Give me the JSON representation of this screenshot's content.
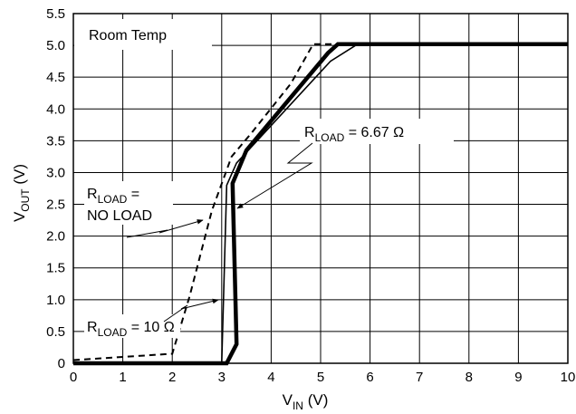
{
  "chart_data": {
    "type": "line",
    "xlim": [
      0,
      10
    ],
    "ylim": [
      0,
      5.5
    ],
    "x_ticks": [
      "0",
      "1",
      "2",
      "3",
      "4",
      "5",
      "6",
      "7",
      "8",
      "9",
      "10"
    ],
    "y_ticks": [
      "0",
      "0.5",
      "1.0",
      "1.5",
      "2.0",
      "2.5",
      "3.0",
      "3.5",
      "4.0",
      "4.5",
      "5.0",
      "5.5"
    ],
    "grid": true,
    "xlabel": {
      "main": "V",
      "sub": "IN",
      "unit": " (V)"
    },
    "ylabel": {
      "main": "V",
      "sub": "OUT",
      "unit": " (V)"
    },
    "title_box": "Room Temp",
    "series": [
      {
        "label": {
          "line1_main": "R",
          "line1_sub": "LOAD",
          "line1_rest": " =",
          "line2": "NO LOAD"
        },
        "style": "thin",
        "points": [
          [
            0,
            0
          ],
          [
            3.0,
            0
          ],
          [
            3.1,
            2.8
          ],
          [
            3.3,
            3.15
          ],
          [
            5.2,
            4.75
          ],
          [
            5.75,
            5.02
          ],
          [
            10,
            5.02
          ]
        ]
      },
      {
        "label": {
          "main": "R",
          "sub": "LOAD",
          "rest": " = 6.67 Ω"
        },
        "style": "thick",
        "points": [
          [
            0,
            0
          ],
          [
            3.1,
            0
          ],
          [
            3.3,
            0.3
          ],
          [
            3.22,
            2.83
          ],
          [
            3.5,
            3.35
          ],
          [
            5.15,
            4.88
          ],
          [
            5.35,
            5.02
          ],
          [
            10,
            5.02
          ]
        ]
      },
      {
        "label": {
          "main": "R",
          "sub": "LOAD",
          "rest": " = 10 Ω"
        },
        "style": "dashed",
        "points": [
          [
            0,
            0.05
          ],
          [
            2.0,
            0.15
          ],
          [
            2.35,
            1.05
          ],
          [
            2.8,
            2.4
          ],
          [
            3.2,
            3.25
          ],
          [
            3.6,
            3.62
          ],
          [
            4.4,
            4.4
          ],
          [
            4.85,
            5.02
          ],
          [
            10,
            5.02
          ]
        ]
      }
    ]
  }
}
